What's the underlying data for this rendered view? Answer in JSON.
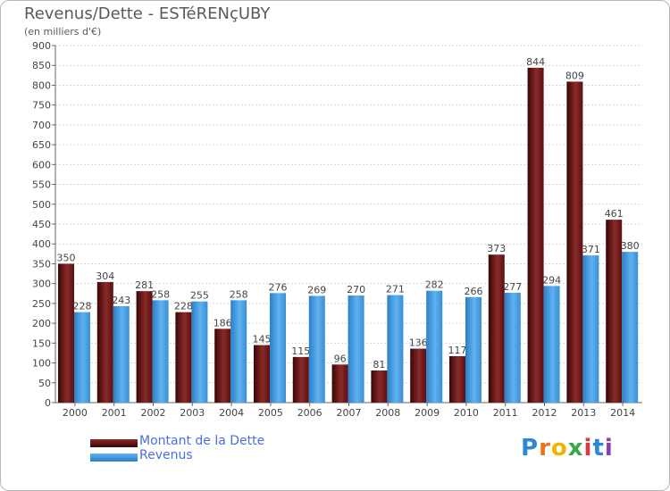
{
  "chart_data": {
    "type": "bar",
    "title": "Revenus/Dette - ESTéRENçUBY",
    "subtitle": "(en milliers d'€)",
    "categories": [
      "2000",
      "2001",
      "2002",
      "2003",
      "2004",
      "2005",
      "2006",
      "2007",
      "2008",
      "2009",
      "2010",
      "2011",
      "2012",
      "2013",
      "2014"
    ],
    "series": [
      {
        "name": "Montant de la Dette",
        "color": "#7a1c1c",
        "values": [
          350,
          304,
          281,
          228,
          186,
          145,
          115,
          96,
          81,
          136,
          117,
          373,
          844,
          809,
          461
        ]
      },
      {
        "name": "Revenus",
        "color": "#3f97dc",
        "values": [
          228,
          243,
          258,
          255,
          258,
          276,
          269,
          270,
          271,
          282,
          266,
          277,
          294,
          371,
          380
        ]
      }
    ],
    "ylim": [
      0,
      900
    ],
    "yticks": [
      0,
      50,
      100,
      150,
      200,
      250,
      300,
      350,
      400,
      450,
      500,
      550,
      600,
      650,
      700,
      750,
      800,
      850,
      900
    ],
    "grid": true,
    "legend_position": "bottom-left"
  },
  "logo": {
    "letters": [
      "P",
      "r",
      "o",
      "x",
      "i",
      "t",
      "i"
    ],
    "colors": [
      "#2e86d6",
      "#e8741c",
      "#f2b400",
      "#3aa84a",
      "#d93c3c",
      "#2e86d6",
      "#8a3fb0"
    ]
  }
}
